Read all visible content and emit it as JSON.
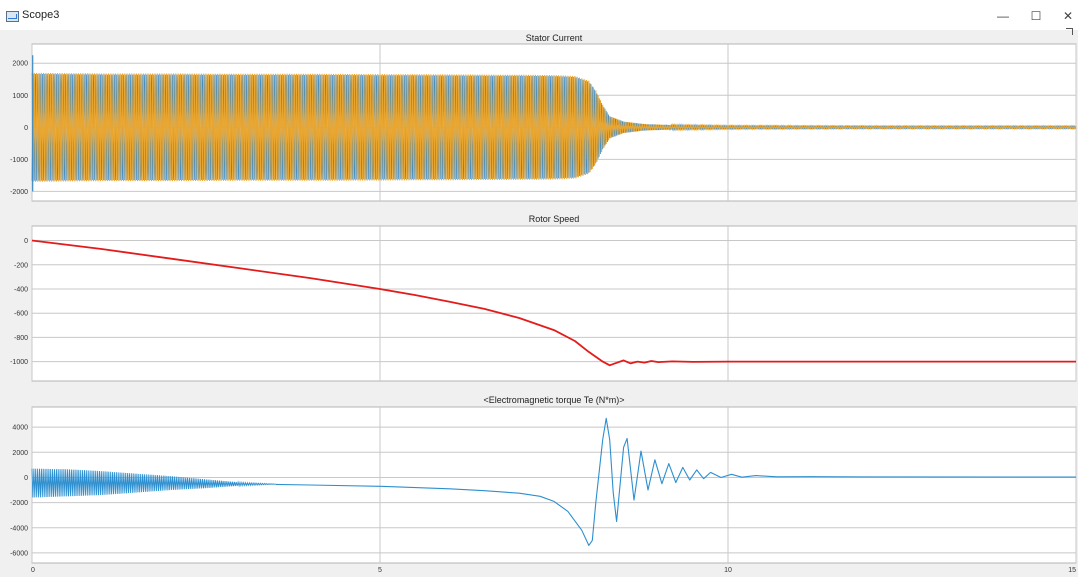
{
  "window": {
    "title": "Scope3",
    "minimize_glyph": "—",
    "maximize_glyph": "☐",
    "close_glyph": "✕",
    "icon": "scope-icon"
  },
  "colors": {
    "plot_background": "#ffffff",
    "grid": "#c8c8c8",
    "stator_series": "#e8a530",
    "stator_shadow": "#3d8bc6",
    "rotor_series": "#e41b1b",
    "torque_series": "#2d8fcf"
  },
  "chart_data": [
    {
      "type": "line",
      "title": "Stator Current",
      "xlim": [
        0,
        15
      ],
      "ylim": [
        -2300,
        2600
      ],
      "yticks": [
        2000,
        1000,
        0,
        -1000,
        -2000
      ],
      "ytick_labels": [
        "2000",
        "1000",
        "0",
        "-1000",
        "-2000"
      ],
      "xticks": [
        0,
        5,
        10,
        15
      ],
      "grid": true,
      "envelope": {
        "x": [
          0,
          1,
          2,
          3,
          4,
          5,
          6,
          7,
          7.5,
          7.8,
          8.0,
          8.1,
          8.2,
          8.3,
          8.5,
          8.8,
          9.2,
          10,
          12,
          15
        ],
        "amplitude": [
          1700,
          1680,
          1680,
          1670,
          1670,
          1660,
          1650,
          1640,
          1630,
          1600,
          1450,
          1150,
          700,
          350,
          180,
          100,
          70,
          50,
          40,
          40
        ]
      }
    },
    {
      "type": "line",
      "title": "Rotor Speed",
      "xlim": [
        0,
        15
      ],
      "ylim": [
        -1160,
        120
      ],
      "yticks": [
        0,
        -200,
        -400,
        -600,
        -800,
        -1000
      ],
      "ytick_labels": [
        "0",
        "-200",
        "-400",
        "-600",
        "-800",
        "-1000"
      ],
      "xticks": [
        0,
        5,
        10,
        15
      ],
      "grid": true,
      "series": [
        {
          "x": [
            0,
            1,
            2,
            3,
            4,
            5,
            5.5,
            6,
            6.5,
            7,
            7.5,
            7.8,
            8.0,
            8.2,
            8.3,
            8.4,
            8.5,
            8.6,
            8.7,
            8.8,
            8.9,
            9.0,
            9.2,
            9.5,
            10,
            12,
            15
          ],
          "y": [
            0,
            -70,
            -150,
            -230,
            -310,
            -400,
            -450,
            -505,
            -565,
            -640,
            -740,
            -830,
            -920,
            -1000,
            -1030,
            -1010,
            -990,
            -1015,
            -1000,
            -1008,
            -995,
            -1004,
            -998,
            -1002,
            -1000,
            -1000,
            -1000
          ]
        }
      ]
    },
    {
      "type": "line",
      "title": "<Electromagnetic torque Te (N*m)>",
      "xlim": [
        0,
        15
      ],
      "ylim": [
        -6800,
        5600
      ],
      "yticks": [
        4000,
        2000,
        0,
        -2000,
        -4000,
        -6000
      ],
      "ytick_labels": [
        "4000",
        "2000",
        "0",
        "-2000",
        "-4000",
        "-6000"
      ],
      "xticks": [
        0,
        5,
        10,
        15
      ],
      "xtick_labels": [
        "0",
        "5",
        "10",
        "15"
      ],
      "grid": true,
      "oscillation_envelope": {
        "x": [
          0,
          0.5,
          1,
          1.5,
          2,
          2.5,
          3,
          3.5
        ],
        "upper": [
          700,
          650,
          500,
          300,
          100,
          -150,
          -400,
          -520
        ],
        "lower": [
          -1600,
          -1500,
          -1400,
          -1200,
          -1000,
          -850,
          -650,
          -540
        ]
      },
      "series": [
        {
          "x": [
            3.5,
            4,
            5,
            6,
            6.5,
            7,
            7.3,
            7.5,
            7.7,
            7.9,
            8.0,
            8.05,
            8.1,
            8.2,
            8.25,
            8.3,
            8.35,
            8.4,
            8.5,
            8.55,
            8.65,
            8.75,
            8.85,
            8.95,
            9.05,
            9.15,
            9.25,
            9.35,
            9.45,
            9.55,
            9.65,
            9.75,
            9.9,
            10.05,
            10.2,
            10.4,
            10.7,
            11.2,
            12,
            15
          ],
          "y": [
            -550,
            -600,
            -700,
            -900,
            -1050,
            -1250,
            -1500,
            -1900,
            -2700,
            -4200,
            -5400,
            -5000,
            -2000,
            3000,
            4700,
            3000,
            -1200,
            -3500,
            2400,
            3100,
            -1800,
            2100,
            -1000,
            1400,
            -500,
            1100,
            -400,
            800,
            -200,
            600,
            -100,
            400,
            0,
            250,
            20,
            150,
            50,
            60,
            40,
            30
          ]
        }
      ]
    }
  ]
}
